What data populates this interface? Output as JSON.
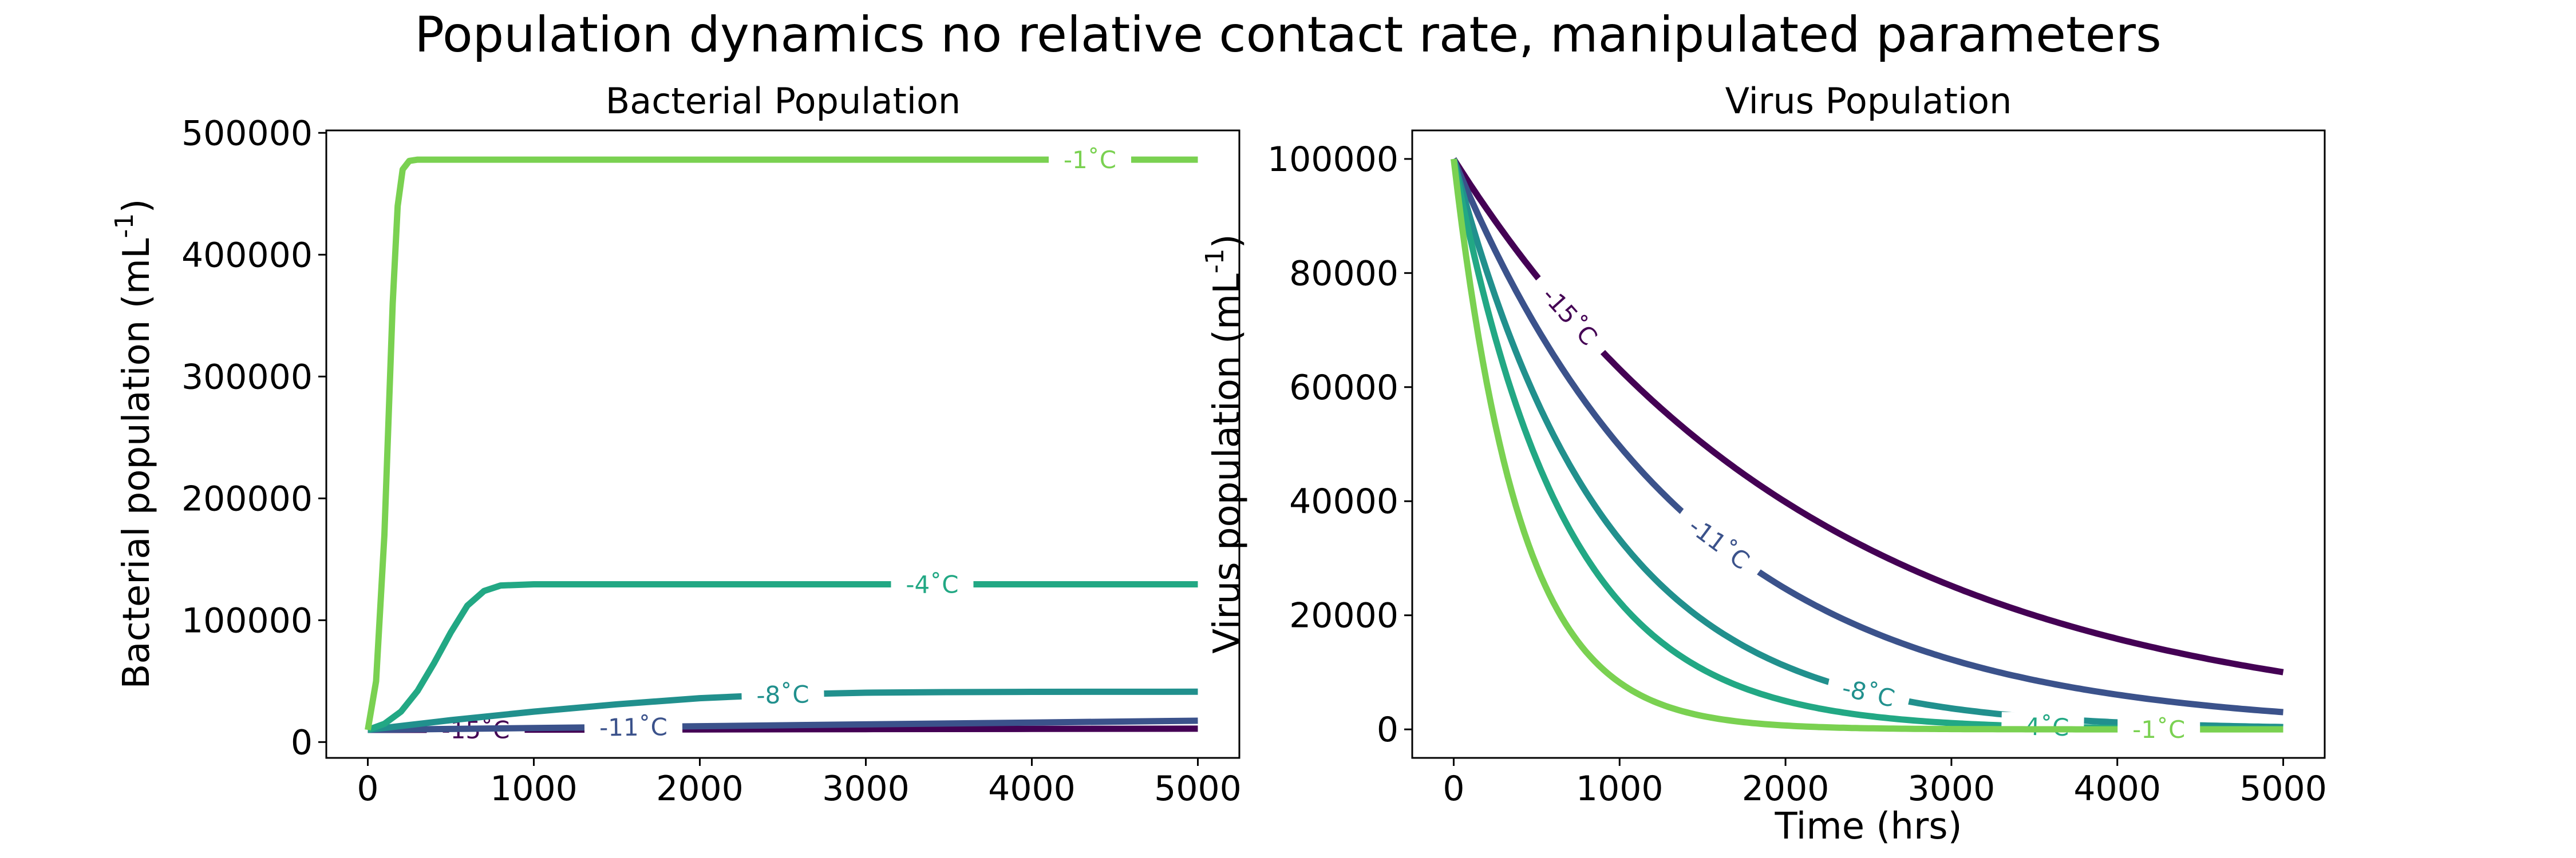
{
  "figure_title": "Population dynamics no relative contact rate, manipulated parameters",
  "colors": {
    "-15": "#440154",
    "-11": "#3b528b",
    "-8": "#21908d",
    "-4": "#22a884",
    "-1": "#7ad151"
  },
  "chart_data": [
    {
      "type": "line",
      "title": "Bacterial Population",
      "xlabel": "",
      "ylabel": "Bacterial population (mL",
      "ylabel_exponent": "-1",
      "ylabel_close": ")",
      "xlim": [
        -250,
        5250
      ],
      "ylim": [
        -13000,
        502000
      ],
      "xticks": [
        0,
        1000,
        2000,
        3000,
        4000,
        5000
      ],
      "yticks": [
        0,
        100000,
        200000,
        300000,
        400000,
        500000
      ],
      "grid": false,
      "series": [
        {
          "key": "-15",
          "label": "-15˚C",
          "x": [
            0,
            1000,
            2000,
            3000,
            4000,
            5000
          ],
          "y": [
            10000,
            10200,
            10400,
            10600,
            10800,
            11000
          ],
          "label_x": 650
        },
        {
          "key": "-11",
          "label": "-11˚C",
          "x": [
            0,
            1000,
            2000,
            3000,
            4000,
            5000
          ],
          "y": [
            10000,
            11500,
            13000,
            14500,
            16000,
            17500
          ],
          "label_x": 1600
        },
        {
          "key": "-8",
          "label": "-8˚C",
          "x": [
            0,
            250,
            500,
            1000,
            1500,
            2000,
            2500,
            3000,
            3500,
            4000,
            5000
          ],
          "y": [
            10000,
            14000,
            18000,
            25000,
            31000,
            36000,
            39000,
            40500,
            41000,
            41200,
            41300
          ],
          "label_x": 2500
        },
        {
          "key": "-4",
          "label": "-4˚C",
          "x": [
            0,
            100,
            200,
            300,
            400,
            500,
            600,
            700,
            800,
            1000,
            2000,
            3000,
            4000,
            5000
          ],
          "y": [
            10000,
            15000,
            25000,
            42000,
            65000,
            90000,
            112000,
            124000,
            128500,
            129500,
            129500,
            129500,
            129500,
            129500
          ],
          "label_x": 3400
        },
        {
          "key": "-1",
          "label": "-1˚C",
          "x": [
            0,
            50,
            100,
            150,
            180,
            210,
            250,
            300,
            1000,
            2000,
            3000,
            4000,
            5000
          ],
          "y": [
            10000,
            50000,
            170000,
            360000,
            440000,
            470000,
            477000,
            478000,
            478000,
            478000,
            478000,
            478000,
            478000
          ],
          "label_x": 4350
        }
      ]
    },
    {
      "type": "line",
      "title": "Virus Population",
      "xlabel": "Time (hrs)",
      "ylabel": "Virus population (mL",
      "ylabel_exponent": "-1",
      "ylabel_close": ")",
      "xlim": [
        -250,
        5250
      ],
      "ylim": [
        -5000,
        105000
      ],
      "xticks": [
        0,
        1000,
        2000,
        3000,
        4000,
        5000
      ],
      "yticks": [
        0,
        20000,
        40000,
        60000,
        80000,
        100000
      ],
      "grid": false,
      "series": [
        {
          "key": "-15",
          "label": "-15˚C",
          "y0": 100000,
          "rate": 0.00046,
          "label_x": 700
        },
        {
          "key": "-11",
          "label": "-11˚C",
          "y0": 100000,
          "rate": 0.0007,
          "label_x": 1600
        },
        {
          "key": "-8",
          "label": "-8˚C",
          "y0": 100000,
          "rate": 0.0011,
          "label_x": 2500
        },
        {
          "key": "-4",
          "label": "-4˚C",
          "y0": 100000,
          "rate": 0.0015,
          "label_x": 3550
        },
        {
          "key": "-1",
          "label": "-1˚C",
          "y0": 100000,
          "rate": 0.0025,
          "label_x": 4250
        }
      ]
    }
  ]
}
